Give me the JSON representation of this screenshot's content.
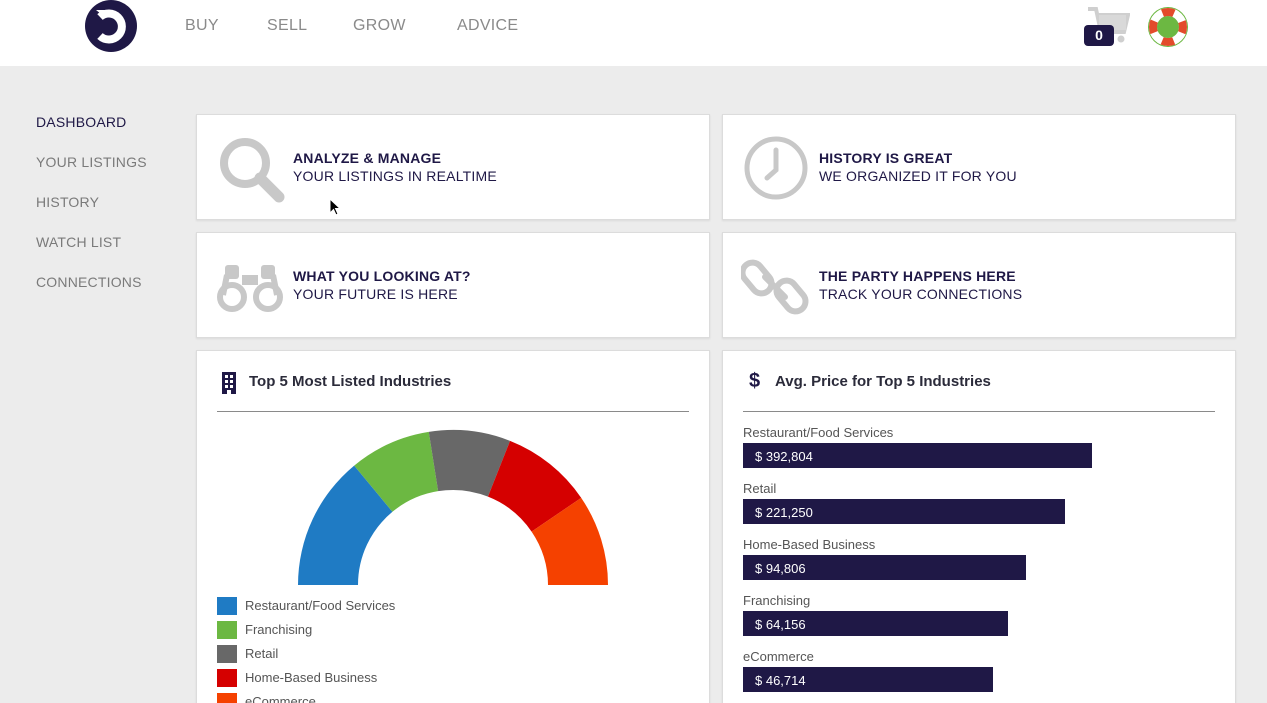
{
  "header": {
    "logo_icon": "brand-logo-icon",
    "nav": [
      "BUY",
      "SELL",
      "GROW",
      "ADVICE"
    ],
    "cart_count": "0",
    "cart_icon": "cart-icon",
    "help_icon": "lifebuoy-icon"
  },
  "sidebar": {
    "items": [
      {
        "label": "DASHBOARD",
        "active": true
      },
      {
        "label": "YOUR LISTINGS"
      },
      {
        "label": "HISTORY"
      },
      {
        "label": "WATCH LIST"
      },
      {
        "label": "CONNECTIONS"
      }
    ]
  },
  "features": [
    {
      "title": "ANALYZE & MANAGE",
      "subtitle": "YOUR LISTINGS IN REALTIME",
      "icon": "search-icon"
    },
    {
      "title": "HISTORY IS GREAT",
      "subtitle": "WE ORGANIZED IT FOR YOU",
      "icon": "clock-icon"
    },
    {
      "title": "WHAT YOU LOOKING AT?",
      "subtitle": "YOUR FUTURE IS HERE",
      "icon": "binoculars-icon"
    },
    {
      "title": "THE PARTY HAPPENS HERE",
      "subtitle": "TRACK YOUR CONNECTIONS",
      "icon": "link-icon"
    }
  ],
  "colors": {
    "brand": "#1f1846",
    "restaurant": "#1f7bc4",
    "franchising": "#6cb842",
    "retail": "#686868",
    "home": "#d50000",
    "ecommerce": "#f54100"
  },
  "industries_panel": {
    "title": "Top 5 Most Listed Industries",
    "icon": "building-icon"
  },
  "price_panel": {
    "title": "Avg. Price for Top 5 Industries",
    "icon": "dollar-icon",
    "currency": "$"
  },
  "chart_data": [
    {
      "type": "pie",
      "variant": "half-donut",
      "title": "Top 5 Most Listed Industries",
      "categories": [
        "Restaurant/Food Services",
        "Franchising",
        "Retail",
        "Home-Based Business",
        "eCommerce"
      ],
      "values": [
        28,
        17,
        17,
        19,
        19
      ],
      "colors": [
        "#1f7bc4",
        "#6cb842",
        "#686868",
        "#d50000",
        "#f54100"
      ],
      "legend": "bottom"
    },
    {
      "type": "bar",
      "orientation": "horizontal",
      "title": "Avg. Price for Top 5 Industries",
      "categories": [
        "Restaurant/Food Services",
        "Retail",
        "Home-Based Business",
        "Franchising",
        "eCommerce"
      ],
      "values": [
        392804,
        221250,
        94806,
        64156,
        46714
      ],
      "value_labels": [
        "$ 392,804",
        "$ 221,250",
        "$ 94,806",
        "$ 64,156",
        "$ 46,714"
      ]
    }
  ]
}
